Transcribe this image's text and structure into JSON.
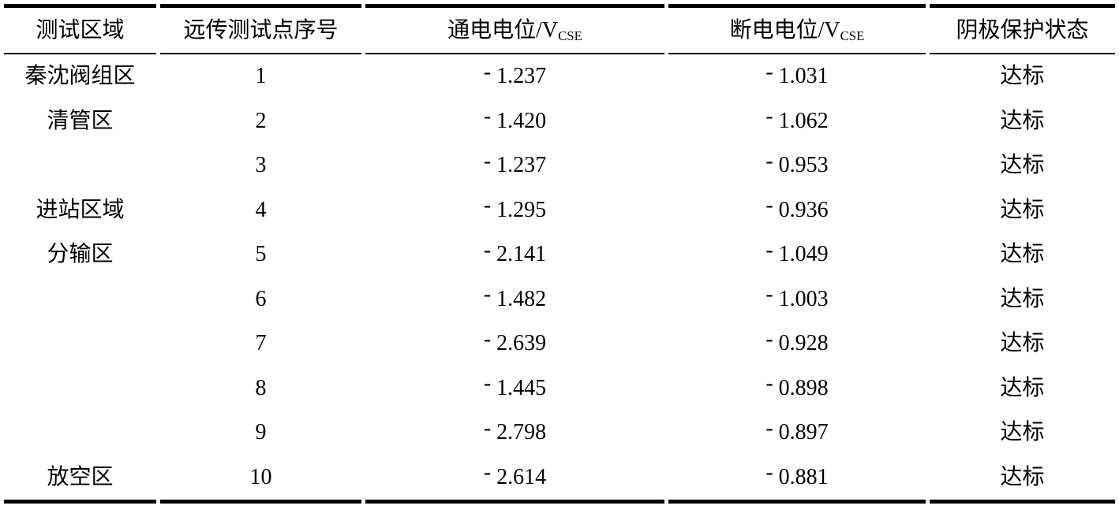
{
  "page": {
    "background_color": "#ffffff",
    "text_color": "#000000"
  },
  "table": {
    "headers": {
      "area": "测试区域",
      "point": "远传测试点序号",
      "on_potential": {
        "label": "通电电位/V",
        "subscript": "CSE"
      },
      "off_potential": {
        "label": "断电电位/V",
        "subscript": "CSE"
      },
      "status": "阴极保护状态"
    },
    "rows": [
      {
        "area": "秦沈阀组区",
        "point": "1",
        "on_potential": "- 1.237",
        "off_potential": "- 1.031",
        "status": "达标"
      },
      {
        "area": "清管区",
        "point": "2",
        "on_potential": "- 1.420",
        "off_potential": "- 1.062",
        "status": "达标"
      },
      {
        "area": "",
        "point": "3",
        "on_potential": "- 1.237",
        "off_potential": "- 0.953",
        "status": "达标"
      },
      {
        "area": "进站区域",
        "point": "4",
        "on_potential": "- 1.295",
        "off_potential": "- 0.936",
        "status": "达标"
      },
      {
        "area": "分输区",
        "point": "5",
        "on_potential": "- 2.141",
        "off_potential": "- 1.049",
        "status": "达标"
      },
      {
        "area": "",
        "point": "6",
        "on_potential": "- 1.482",
        "off_potential": "- 1.003",
        "status": "达标"
      },
      {
        "area": "",
        "point": "7",
        "on_potential": "- 2.639",
        "off_potential": "- 0.928",
        "status": "达标"
      },
      {
        "area": "",
        "point": "8",
        "on_potential": "- 1.445",
        "off_potential": "- 0.898",
        "status": "达标"
      },
      {
        "area": "",
        "point": "9",
        "on_potential": "- 2.798",
        "off_potential": "- 0.897",
        "status": "达标"
      },
      {
        "area": "放空区",
        "point": "10",
        "on_potential": "- 2.614",
        "off_potential": "- 0.881",
        "status": "达标"
      }
    ]
  }
}
